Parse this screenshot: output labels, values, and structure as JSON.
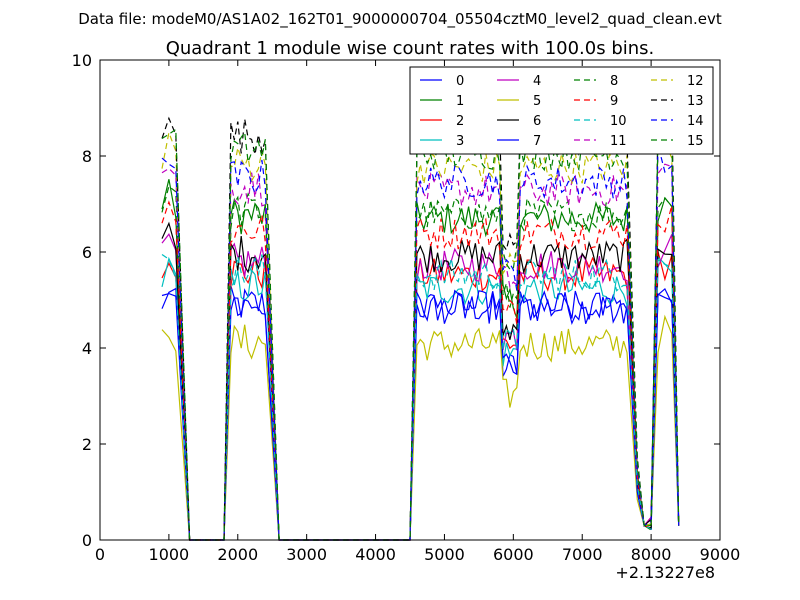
{
  "chart_data": {
    "type": "line",
    "suptitle": "Data file: modeM0/AS1A02_162T01_9000000704_05504cztM0_level2_quad_clean.evt",
    "title": "Quadrant 1 module wise count rates with 100.0s bins.",
    "xlabel": "",
    "ylabel": "",
    "x_offset_label": "+2.13227e8",
    "xlim": [
      0,
      9000
    ],
    "ylim": [
      0,
      10
    ],
    "xticks": [
      0,
      1000,
      2000,
      3000,
      4000,
      5000,
      6000,
      7000,
      8000,
      9000
    ],
    "yticks": [
      0,
      2,
      4,
      6,
      8,
      10
    ],
    "xtick_labels": [
      "0",
      "1000",
      "2000",
      "3000",
      "4000",
      "5000",
      "6000",
      "7000",
      "8000",
      "9000"
    ],
    "ytick_labels": [
      "0",
      "2",
      "4",
      "6",
      "8",
      "10"
    ],
    "grid": false,
    "legend_position": "top-right",
    "legend_columns": 4,
    "series": [
      {
        "name": "0",
        "color": "#0000ff",
        "dash": "solid"
      },
      {
        "name": "1",
        "color": "#008000",
        "dash": "solid"
      },
      {
        "name": "2",
        "color": "#ff0000",
        "dash": "solid"
      },
      {
        "name": "3",
        "color": "#00bfbf",
        "dash": "solid"
      },
      {
        "name": "4",
        "color": "#bf00bf",
        "dash": "solid"
      },
      {
        "name": "5",
        "color": "#bfbf00",
        "dash": "solid"
      },
      {
        "name": "6",
        "color": "#000000",
        "dash": "solid"
      },
      {
        "name": "7",
        "color": "#0000ff",
        "dash": "solid"
      },
      {
        "name": "8",
        "color": "#008000",
        "dash": "dashed"
      },
      {
        "name": "9",
        "color": "#ff0000",
        "dash": "dashed"
      },
      {
        "name": "10",
        "color": "#00bfbf",
        "dash": "dashed"
      },
      {
        "name": "11",
        "color": "#bf00bf",
        "dash": "dashed"
      },
      {
        "name": "12",
        "color": "#bfbf00",
        "dash": "dashed"
      },
      {
        "name": "13",
        "color": "#000000",
        "dash": "dashed"
      },
      {
        "name": "14",
        "color": "#0000ff",
        "dash": "dashed"
      },
      {
        "name": "15",
        "color": "#008000",
        "dash": "dashed"
      }
    ],
    "segments": [
      {
        "x_start": 900,
        "x_end": 1100,
        "x_drop": 1300
      },
      {
        "x_start": 1800,
        "x_end": 2400,
        "x_drop": 2600
      },
      {
        "x_start": 4550,
        "x_end": 7650,
        "x_drop": null
      },
      {
        "x_start": 8100,
        "x_end": 8400,
        "x_drop": null
      }
    ],
    "zero_gaps": [
      [
        1300,
        1800
      ],
      [
        2600,
        4500
      ]
    ],
    "dip": {
      "x": 7900,
      "value": 0.3
    },
    "series_levels": [
      5.0,
      6.9,
      5.7,
      5.4,
      5.9,
      4.2,
      6.1,
      5.0,
      7.0,
      6.6,
      5.7,
      7.5,
      8.0,
      8.6,
      7.7,
      8.3
    ]
  }
}
